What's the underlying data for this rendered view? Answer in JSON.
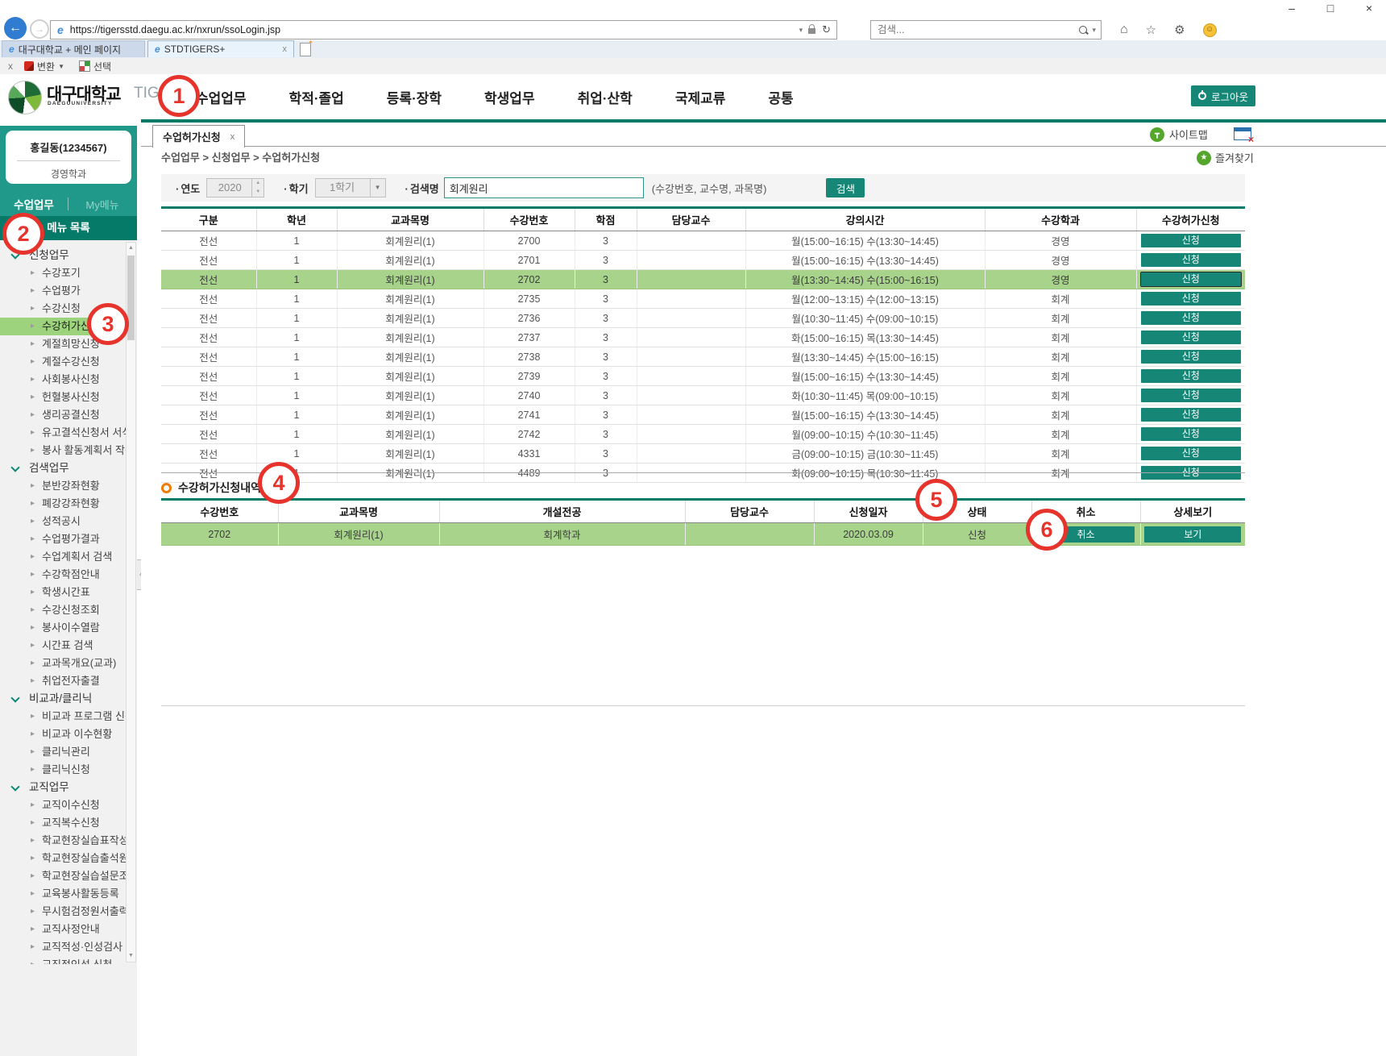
{
  "browser": {
    "url": "https://tigersstd.daegu.ac.kr/nxrun/ssoLogin.jsp",
    "search_placeholder": "검색...",
    "window_controls": {
      "minimize": "–",
      "maximize": "□",
      "close": "×"
    },
    "tabs": [
      {
        "label": "대구대학교 + 메인 페이지"
      },
      {
        "label": "STDTIGERS+",
        "close": "x"
      }
    ],
    "addon_bar": {
      "close": "x",
      "convert": "변환",
      "select": "선택"
    }
  },
  "header": {
    "university": "대구대학교",
    "university_en": "DAEGUUNIVERSITY",
    "brand": "TIGERS+",
    "nav": [
      {
        "label": "수업업무"
      },
      {
        "label": "학적·졸업"
      },
      {
        "label": "등록·장학"
      },
      {
        "label": "학생업무"
      },
      {
        "label": "취업·산학"
      },
      {
        "label": "국제교류"
      },
      {
        "label": "공통"
      }
    ],
    "logout_label": "로그아웃"
  },
  "sidebar": {
    "user_name": "홍길동(1234567)",
    "user_dept": "경영학과",
    "tab_main": "수업업무",
    "tab_my": "My메뉴",
    "menu_title": "메뉴 목록",
    "menu": [
      {
        "type": "sec",
        "label": "신청업무"
      },
      {
        "type": "item",
        "label": "수강포기"
      },
      {
        "type": "item",
        "label": "수업평가"
      },
      {
        "type": "item",
        "label": "수강신청"
      },
      {
        "type": "item",
        "label": "수강허가신청",
        "state": "selected"
      },
      {
        "type": "item",
        "label": "계절희망신청"
      },
      {
        "type": "item",
        "label": "계절수강신청"
      },
      {
        "type": "item",
        "label": "사회봉사신청"
      },
      {
        "type": "item",
        "label": "헌혈봉사신청"
      },
      {
        "type": "item",
        "label": "생리공결신청"
      },
      {
        "type": "item",
        "label": "유고결석신청서 서식"
      },
      {
        "type": "item",
        "label": "봉사 활동계획서 작성"
      },
      {
        "type": "sec",
        "label": "검색업무"
      },
      {
        "type": "item",
        "label": "분반강좌현황"
      },
      {
        "type": "item",
        "label": "폐강강좌현황"
      },
      {
        "type": "item",
        "label": "성적공시"
      },
      {
        "type": "item",
        "label": "수업평가결과"
      },
      {
        "type": "item",
        "label": "수업계획서 검색"
      },
      {
        "type": "item",
        "label": "수강학점안내"
      },
      {
        "type": "item",
        "label": "학생시간표"
      },
      {
        "type": "item",
        "label": "수강신청조회"
      },
      {
        "type": "item",
        "label": "봉사이수열람"
      },
      {
        "type": "item",
        "label": "시간표 검색"
      },
      {
        "type": "item",
        "label": "교과목개요(교과)"
      },
      {
        "type": "item",
        "label": "취업전자출결"
      },
      {
        "type": "sec",
        "label": "비교과/클리닉"
      },
      {
        "type": "item",
        "label": "비교과 프로그램 신청"
      },
      {
        "type": "item",
        "label": "비교과 이수현황"
      },
      {
        "type": "item",
        "label": "클리닉관리"
      },
      {
        "type": "item",
        "label": "클리닉신청"
      },
      {
        "type": "sec",
        "label": "교직업무"
      },
      {
        "type": "item",
        "label": "교직이수신청"
      },
      {
        "type": "item",
        "label": "교직복수신청"
      },
      {
        "type": "item",
        "label": "학교현장실습표작성"
      },
      {
        "type": "item",
        "label": "학교현장실습출석원"
      },
      {
        "type": "item",
        "label": "학교현장실습설문조사"
      },
      {
        "type": "item",
        "label": "교육봉사활동등록"
      },
      {
        "type": "item",
        "label": "무시험검정원서출력"
      },
      {
        "type": "item",
        "label": "교직사정안내"
      },
      {
        "type": "item",
        "label": "교직적성·인성검사"
      },
      {
        "type": "item",
        "label": "교직적인성 신청"
      }
    ]
  },
  "main": {
    "view_tab": "수업허가신청",
    "view_tab_close": "x",
    "sitemap_label": "사이트맵",
    "favorites_label": "즐겨찾기",
    "breadcrumb": "수업업무 > 신청업무 > 수업허가신청",
    "filters": {
      "year_label": "연도",
      "year_value": "2020",
      "term_label": "학기",
      "term_value": "1학기",
      "keyword_label": "검색명",
      "keyword_value": "회계원리",
      "hint": "(수강번호, 교수명, 과목명)",
      "search_button": "검색"
    },
    "course_table": {
      "headers": [
        "구분",
        "학년",
        "교과목명",
        "수강번호",
        "학점",
        "담당교수",
        "강의시간",
        "수강학과",
        "수강허가신청"
      ],
      "rows": [
        {
          "gubun": "전선",
          "year": "1",
          "course": "회계원리(1)",
          "code": "2700",
          "credit": "3",
          "prof": "",
          "time": "월(15:00~16:15) 수(13:30~14:45)",
          "dept": "경영",
          "action": "신청"
        },
        {
          "gubun": "전선",
          "year": "1",
          "course": "회계원리(1)",
          "code": "2701",
          "credit": "3",
          "prof": "",
          "time": "월(15:00~16:15) 수(13:30~14:45)",
          "dept": "경영",
          "action": "신청"
        },
        {
          "gubun": "전선",
          "year": "1",
          "course": "회계원리(1)",
          "code": "2702",
          "credit": "3",
          "prof": "",
          "time": "월(13:30~14:45) 수(15:00~16:15)",
          "dept": "경영",
          "action": "신청",
          "state": "hl"
        },
        {
          "gubun": "전선",
          "year": "1",
          "course": "회계원리(1)",
          "code": "2735",
          "credit": "3",
          "prof": "",
          "time": "월(12:00~13:15) 수(12:00~13:15)",
          "dept": "회계",
          "action": "신청"
        },
        {
          "gubun": "전선",
          "year": "1",
          "course": "회계원리(1)",
          "code": "2736",
          "credit": "3",
          "prof": "",
          "time": "월(10:30~11:45) 수(09:00~10:15)",
          "dept": "회계",
          "action": "신청"
        },
        {
          "gubun": "전선",
          "year": "1",
          "course": "회계원리(1)",
          "code": "2737",
          "credit": "3",
          "prof": "",
          "time": "화(15:00~16:15) 목(13:30~14:45)",
          "dept": "회계",
          "action": "신청"
        },
        {
          "gubun": "전선",
          "year": "1",
          "course": "회계원리(1)",
          "code": "2738",
          "credit": "3",
          "prof": "",
          "time": "월(13:30~14:45) 수(15:00~16:15)",
          "dept": "회계",
          "action": "신청"
        },
        {
          "gubun": "전선",
          "year": "1",
          "course": "회계원리(1)",
          "code": "2739",
          "credit": "3",
          "prof": "",
          "time": "월(15:00~16:15) 수(13:30~14:45)",
          "dept": "회계",
          "action": "신청"
        },
        {
          "gubun": "전선",
          "year": "1",
          "course": "회계원리(1)",
          "code": "2740",
          "credit": "3",
          "prof": "",
          "time": "화(10:30~11:45) 목(09:00~10:15)",
          "dept": "회계",
          "action": "신청"
        },
        {
          "gubun": "전선",
          "year": "1",
          "course": "회계원리(1)",
          "code": "2741",
          "credit": "3",
          "prof": "",
          "time": "월(15:00~16:15) 수(13:30~14:45)",
          "dept": "회계",
          "action": "신청"
        },
        {
          "gubun": "전선",
          "year": "1",
          "course": "회계원리(1)",
          "code": "2742",
          "credit": "3",
          "prof": "",
          "time": "월(09:00~10:15) 수(10:30~11:45)",
          "dept": "회계",
          "action": "신청"
        },
        {
          "gubun": "전선",
          "year": "1",
          "course": "회계원리(1)",
          "code": "4331",
          "credit": "3",
          "prof": "",
          "time": "금(09:00~10:15) 금(10:30~11:45)",
          "dept": "회계",
          "action": "신청"
        },
        {
          "gubun": "전선",
          "year": "1",
          "course": "회계원리(1)",
          "code": "4489",
          "credit": "3",
          "prof": "",
          "time": "화(09:00~10:15) 목(10:30~11:45)",
          "dept": "회계",
          "action": "신청"
        }
      ]
    },
    "section_title": "수강허가신청내역",
    "history_table": {
      "headers": [
        "수강번호",
        "교과목명",
        "개설전공",
        "담당교수",
        "신청일자",
        "상태",
        "취소",
        "상세보기"
      ],
      "rows": [
        {
          "code": "2702",
          "course": "회계원리(1)",
          "major": "회계학과",
          "prof": "",
          "date": "2020.03.09",
          "status": "신청",
          "cancel": "취소",
          "view": "보기",
          "state": "hl"
        }
      ]
    }
  },
  "annotations": [
    "1",
    "2",
    "3",
    "4",
    "5",
    "6"
  ]
}
